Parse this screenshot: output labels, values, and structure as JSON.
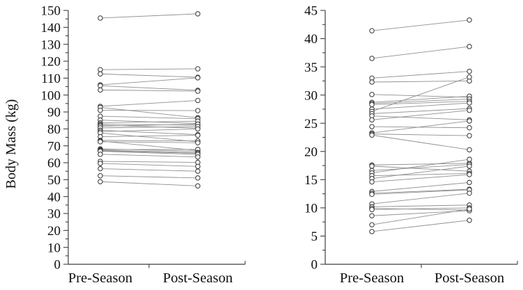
{
  "figure": {
    "description": "Paired individual-change plots, Pre-Season vs Post-Season",
    "panel_count": 2
  },
  "style": {
    "background": "#ffffff",
    "axis_color": "#3f3f3f",
    "pair_line_color": "#8f8f8f",
    "marker_fill": "#ffffff",
    "marker_stroke": "#3a3a3a",
    "text_color": "#101010"
  },
  "chart_data": [
    {
      "type": "line",
      "variant": "paired-dot-plot",
      "title": "",
      "ylabel": "Body Mass (kg)",
      "xlabel": "",
      "categories": [
        "Pre-Season",
        "Post-Season"
      ],
      "ylim": [
        0,
        150
      ],
      "ytick_interval": 10,
      "ytick_minor_interval": 5,
      "grid": false,
      "legend": "none",
      "pairs": [
        [
          145.5,
          148.0
        ],
        [
          115.0,
          115.5
        ],
        [
          112.5,
          110.5
        ],
        [
          106.0,
          110.2
        ],
        [
          105.5,
          102.8
        ],
        [
          103.0,
          102.3
        ],
        [
          93.3,
          96.8
        ],
        [
          92.7,
          86.6
        ],
        [
          91.0,
          90.8
        ],
        [
          87.5,
          86.0
        ],
        [
          85.2,
          83.2
        ],
        [
          83.6,
          84.6
        ],
        [
          82.8,
          82.2
        ],
        [
          82.2,
          80.4
        ],
        [
          81.6,
          82.8
        ],
        [
          80.6,
          81.4
        ],
        [
          79.2,
          76.6
        ],
        [
          78.4,
          80.0
        ],
        [
          77.6,
          72.4
        ],
        [
          75.4,
          76.2
        ],
        [
          73.2,
          72.9
        ],
        [
          72.8,
          67.2
        ],
        [
          72.4,
          71.8
        ],
        [
          68.2,
          66.8
        ],
        [
          67.8,
          67.9
        ],
        [
          67.4,
          66.0
        ],
        [
          67.0,
          65.6
        ],
        [
          66.8,
          64.9
        ],
        [
          65.0,
          63.4
        ],
        [
          60.8,
          60.2
        ],
        [
          59.6,
          57.8
        ],
        [
          56.5,
          55.0
        ],
        [
          52.3,
          51.0
        ],
        [
          48.8,
          46.3
        ]
      ]
    },
    {
      "type": "line",
      "variant": "paired-dot-plot",
      "title": "",
      "ylabel": "",
      "xlabel": "",
      "categories": [
        "Pre-Season",
        "Post-Season"
      ],
      "ylim": [
        0,
        45
      ],
      "ytick_interval": 5,
      "ytick_minor_interval": 2.5,
      "grid": false,
      "legend": "none",
      "pairs": [
        [
          41.4,
          43.3
        ],
        [
          36.5,
          38.6
        ],
        [
          33.0,
          34.2
        ],
        [
          32.3,
          32.5
        ],
        [
          30.1,
          29.6
        ],
        [
          28.7,
          29.8
        ],
        [
          28.5,
          29.3
        ],
        [
          28.3,
          28.9
        ],
        [
          27.5,
          28.6
        ],
        [
          27.1,
          33.2
        ],
        [
          26.7,
          27.6
        ],
        [
          26.3,
          25.6
        ],
        [
          25.6,
          27.3
        ],
        [
          24.4,
          24.2
        ],
        [
          23.3,
          25.4
        ],
        [
          23.1,
          22.8
        ],
        [
          22.9,
          20.3
        ],
        [
          17.6,
          17.9
        ],
        [
          17.4,
          16.5
        ],
        [
          16.6,
          17.7
        ],
        [
          16.2,
          18.6
        ],
        [
          15.7,
          16.1
        ],
        [
          15.2,
          17.4
        ],
        [
          14.6,
          15.9
        ],
        [
          12.9,
          14.5
        ],
        [
          12.6,
          13.3
        ],
        [
          12.4,
          13.2
        ],
        [
          10.7,
          12.6
        ],
        [
          10.2,
          10.5
        ],
        [
          9.9,
          9.6
        ],
        [
          9.7,
          10.0
        ],
        [
          8.6,
          9.5
        ],
        [
          7.0,
          9.8
        ],
        [
          5.8,
          7.8
        ]
      ]
    }
  ]
}
